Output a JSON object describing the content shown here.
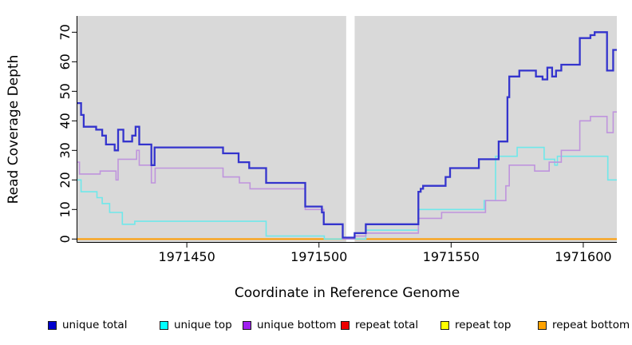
{
  "chart_data": {
    "type": "line",
    "subtype": "step-after",
    "title": "",
    "xlabel": "Coordinate in Reference Genome",
    "ylabel": "Read Coverage Depth",
    "x_range": [
      1971408.6,
      1971612.7
    ],
    "y_range": [
      -1,
      75.5
    ],
    "x_ticks": [
      1971450,
      1971500,
      1971550,
      1971600
    ],
    "y_ticks": [
      0,
      10,
      20,
      30,
      40,
      50,
      60,
      70
    ],
    "grid": false,
    "legend_position": "bottom",
    "plot_background": "#d9d9d9",
    "axis_color": "#000000",
    "no_data_band": {
      "x_start": 1971510.3,
      "x_end": 1971513.5,
      "color": "#ffffff"
    },
    "series": [
      {
        "name": "unique total",
        "line_color": "#3434cd",
        "legend_color": "#0000cd",
        "line_width": 2.3,
        "break_at_gap": false,
        "points": [
          [
            1971408.6,
            46
          ],
          [
            1971410.0,
            42
          ],
          [
            1971411.0,
            38
          ],
          [
            1971415.7,
            37
          ],
          [
            1971418.0,
            35
          ],
          [
            1971419.4,
            32
          ],
          [
            1971422.7,
            30
          ],
          [
            1971424.0,
            37
          ],
          [
            1971426.0,
            33
          ],
          [
            1971429.3,
            35
          ],
          [
            1971430.6,
            38
          ],
          [
            1971432.0,
            32
          ],
          [
            1971436.6,
            25
          ],
          [
            1971437.8,
            31
          ],
          [
            1971463.7,
            29
          ],
          [
            1971469.6,
            26
          ],
          [
            1971473.6,
            24
          ],
          [
            1971480.0,
            19
          ],
          [
            1971494.8,
            11
          ],
          [
            1971501.1,
            9
          ],
          [
            1971501.8,
            5
          ],
          [
            1971509.0,
            0.5
          ],
          [
            1971513.5,
            2
          ],
          [
            1971517.7,
            5
          ],
          [
            1971537.6,
            16
          ],
          [
            1971538.5,
            17
          ],
          [
            1971539.4,
            18
          ],
          [
            1971547.9,
            21
          ],
          [
            1971549.6,
            24
          ],
          [
            1971560.5,
            27
          ],
          [
            1971568.0,
            33
          ],
          [
            1971571.3,
            48
          ],
          [
            1971572.0,
            55
          ],
          [
            1971575.8,
            57
          ],
          [
            1971582.1,
            55
          ],
          [
            1971584.6,
            54
          ],
          [
            1971586.4,
            58
          ],
          [
            1971588.2,
            55
          ],
          [
            1971589.7,
            57
          ],
          [
            1971591.7,
            59
          ],
          [
            1971598.7,
            68
          ],
          [
            1971602.7,
            69
          ],
          [
            1971604.3,
            70
          ],
          [
            1971609.0,
            57
          ],
          [
            1971611.3,
            64
          ]
        ]
      },
      {
        "name": "unique top",
        "line_color": "#6fe8ea",
        "legend_color": "#00ffff",
        "line_width": 1.6,
        "break_at_gap": false,
        "points": [
          [
            1971408.6,
            20
          ],
          [
            1971410.0,
            16
          ],
          [
            1971416.0,
            14
          ],
          [
            1971418.0,
            12
          ],
          [
            1971420.8,
            9
          ],
          [
            1971425.6,
            5
          ],
          [
            1971430.3,
            6
          ],
          [
            1971480.0,
            1
          ],
          [
            1971502.0,
            0
          ],
          [
            1971517.7,
            3
          ],
          [
            1971537.6,
            10
          ],
          [
            1971562.5,
            13
          ],
          [
            1971566.8,
            28
          ],
          [
            1971575.0,
            31
          ],
          [
            1971585.2,
            27
          ],
          [
            1971589.2,
            25
          ],
          [
            1971590.2,
            28
          ],
          [
            1971609.3,
            20
          ]
        ]
      },
      {
        "name": "unique bottom",
        "line_color": "#bf94dd",
        "legend_color": "#a020f0",
        "line_width": 1.6,
        "break_at_gap": false,
        "points": [
          [
            1971408.6,
            26
          ],
          [
            1971409.4,
            22
          ],
          [
            1971417.2,
            23
          ],
          [
            1971423.2,
            20
          ],
          [
            1971424.0,
            27
          ],
          [
            1971431.0,
            30
          ],
          [
            1971432.0,
            25
          ],
          [
            1971436.6,
            19
          ],
          [
            1971438.0,
            24
          ],
          [
            1971463.7,
            21
          ],
          [
            1971469.9,
            19
          ],
          [
            1971473.9,
            17
          ],
          [
            1971494.8,
            10
          ],
          [
            1971501.8,
            5
          ],
          [
            1971509.0,
            0
          ],
          [
            1971513.5,
            1
          ],
          [
            1971517.7,
            2
          ],
          [
            1971537.6,
            7
          ],
          [
            1971546.4,
            9
          ],
          [
            1971563.0,
            13
          ],
          [
            1971570.7,
            18
          ],
          [
            1971572.0,
            25
          ],
          [
            1971581.6,
            23
          ],
          [
            1971587.1,
            26
          ],
          [
            1971591.7,
            30
          ],
          [
            1971598.7,
            40
          ],
          [
            1971602.7,
            41.5
          ],
          [
            1971609.0,
            36
          ],
          [
            1971611.3,
            43
          ]
        ]
      },
      {
        "name": "repeat total",
        "line_color": "#ee0000",
        "legend_color": "#ee0000",
        "line_width": 1.6,
        "break_at_gap": true,
        "points": [
          [
            1971408.6,
            0
          ]
        ]
      },
      {
        "name": "repeat top",
        "line_color": "#ffff00",
        "legend_color": "#ffff00",
        "line_width": 1.6,
        "break_at_gap": true,
        "points": [
          [
            1971408.6,
            0
          ]
        ]
      },
      {
        "name": "repeat bottom",
        "line_color": "#ff9c00",
        "legend_color": "#ffa200",
        "line_width": 1.8,
        "break_at_gap": true,
        "points": [
          [
            1971408.6,
            0
          ]
        ]
      }
    ]
  }
}
